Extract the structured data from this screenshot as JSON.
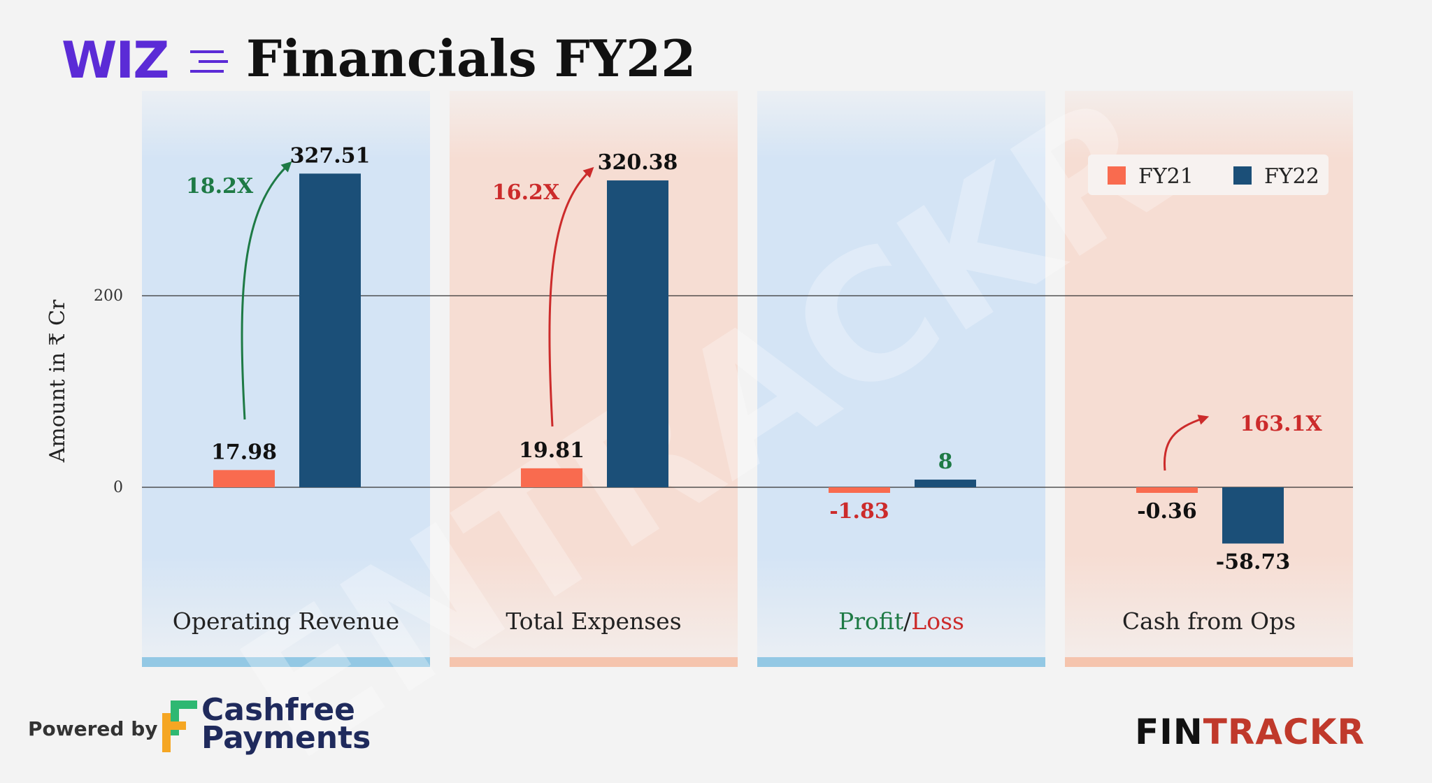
{
  "header": {
    "brand": "WIZ",
    "title": "Financials FY22"
  },
  "footer": {
    "powered_by": "Powered by",
    "sponsor_line1": "Cashfree",
    "sponsor_line2": "Payments",
    "publisher_part1": "FIN",
    "publisher_part2": "TRACKR",
    "watermark": "ENTRACKR"
  },
  "colors": {
    "fy21": "#f96b4f",
    "fy22": "#1b4f78",
    "green": "#1e7a45",
    "red": "#cc2b2b",
    "panel_blue": "#d4e4f5",
    "panel_peach": "#f6ddd3",
    "strip_blue": "#93c8e4",
    "strip_peach": "#f5c4ad",
    "brand": "#5b2bd6"
  },
  "chart_data": {
    "type": "bar",
    "ylabel": "Amount in ₹ Cr",
    "yticks": [
      0,
      200
    ],
    "ylim": [
      -110,
      360
    ],
    "categories": [
      "Operating Revenue",
      "Total Expenses",
      "Profit/Loss",
      "Cash from Ops"
    ],
    "category_label_parts": [
      [
        "Operating Revenue"
      ],
      [
        "Total Expenses"
      ],
      [
        "Profit",
        "/",
        "Loss"
      ],
      [
        "Cash from Ops"
      ]
    ],
    "series": [
      {
        "name": "FY21",
        "values": [
          17.98,
          19.81,
          -1.83,
          -0.36
        ],
        "labels": [
          "17.98",
          "19.81",
          "-1.83",
          "-0.36"
        ]
      },
      {
        "name": "FY22",
        "values": [
          327.51,
          320.38,
          8,
          -58.73
        ],
        "labels": [
          "327.51",
          "320.38",
          "8",
          "-58.73"
        ]
      }
    ],
    "growth_annotations": [
      {
        "category": "Operating Revenue",
        "text": "18.2X",
        "color": "green"
      },
      {
        "category": "Total Expenses",
        "text": "16.2X",
        "color": "red"
      },
      {
        "category": "Cash from Ops",
        "text": "163.1X",
        "color": "red"
      }
    ],
    "legend_position": "top-right",
    "grid": true
  }
}
